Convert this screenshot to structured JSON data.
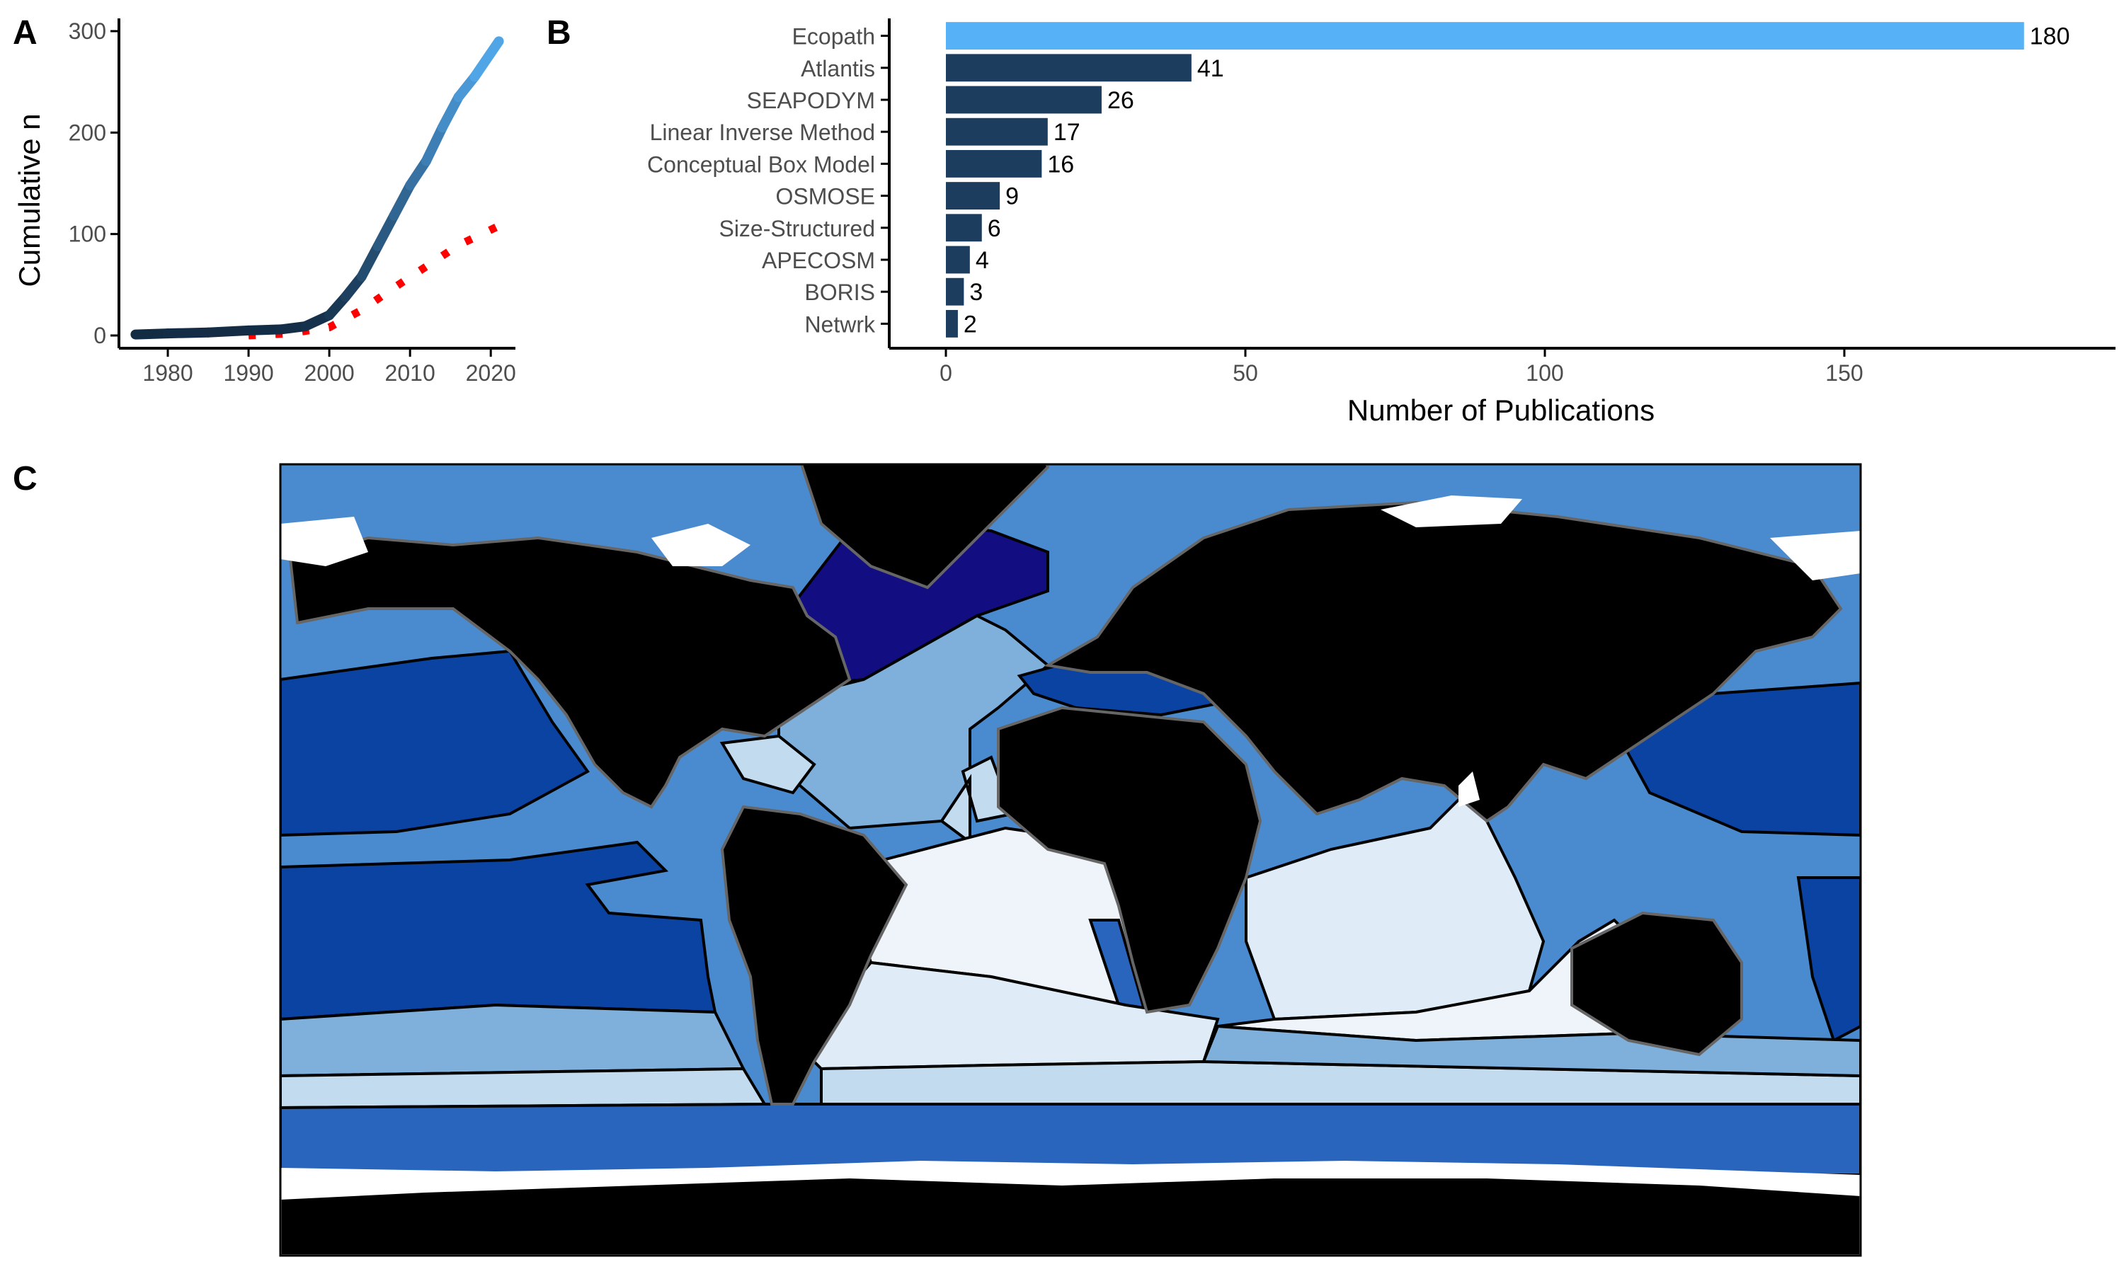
{
  "panel_labels": {
    "a": "A",
    "b": "B",
    "c": "C"
  },
  "chart_data": [
    {
      "type": "line",
      "panel": "A",
      "xlabel": "",
      "ylabel": "Cumulative n",
      "xlim": [
        1975,
        2022
      ],
      "ylim": [
        0,
        300
      ],
      "xticks": [
        1980,
        1990,
        2000,
        2010,
        2020
      ],
      "yticks": [
        0,
        100,
        200,
        300
      ],
      "series": [
        {
          "style": "solid-gradient",
          "color_start": "#132b43",
          "color_end": "#56b1f7",
          "x": [
            1976,
            1980,
            1985,
            1990,
            1994,
            1997,
            2000,
            2002,
            2004,
            2006,
            2008,
            2010,
            2012,
            2014,
            2016,
            2018,
            2021
          ],
          "y": [
            1,
            2,
            3,
            5,
            6,
            9,
            20,
            38,
            58,
            88,
            118,
            148,
            172,
            205,
            235,
            255,
            290
          ]
        },
        {
          "style": "dotted",
          "color": "#ff0000",
          "x": [
            1990,
            1995,
            2000,
            2004,
            2008,
            2012,
            2016,
            2021
          ],
          "y": [
            0,
            2,
            8,
            25,
            47,
            68,
            89,
            108
          ]
        }
      ]
    },
    {
      "type": "bar",
      "panel": "B",
      "orientation": "horizontal",
      "categories": [
        "Ecopath",
        "Atlantis",
        "SEAPODYM",
        "Linear Inverse Method",
        "Conceptual Box Model",
        "OSMOSE",
        "Size-Structured",
        "APECOSM",
        "BORIS",
        "Netwrk"
      ],
      "values": [
        180,
        41,
        26,
        17,
        16,
        9,
        6,
        4,
        3,
        2
      ],
      "xlabel": "Number of Publications",
      "ylabel": "",
      "xlim": [
        0,
        187
      ],
      "xticks": [
        0,
        50,
        100,
        150
      ],
      "colors": {
        "max": "#56b1f7",
        "other": "#1d3d5f"
      }
    }
  ],
  "map": {
    "panel": "C",
    "colors": {
      "ocean_default": "#4a8bcf",
      "land": "#000000",
      "border": "#666666",
      "ice": "#ffffff",
      "very_high": "#120e82",
      "high": "#0b43a3",
      "mid_high": "#2a65bd",
      "mid": "#4480c8",
      "mid_low": "#7fb0db",
      "low": "#c3dbee",
      "very_low": "#dfebf6",
      "lowest": "#eef4fa"
    }
  }
}
